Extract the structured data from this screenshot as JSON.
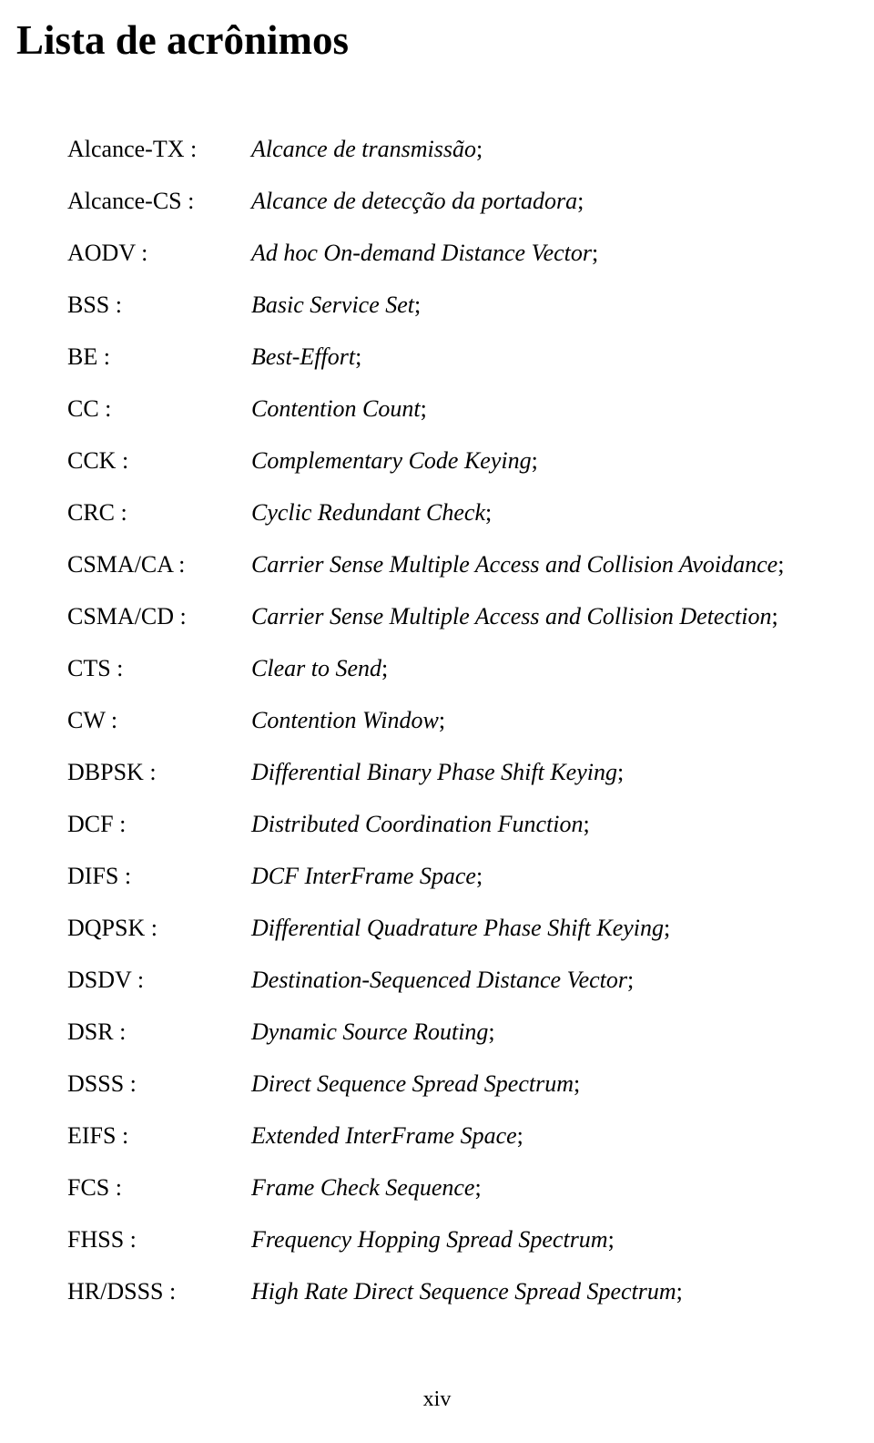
{
  "title": "Lista de acrônimos",
  "page_number": "xiv",
  "entries": [
    {
      "acronym": "Alcance-TX :",
      "definition": "Alcance de transmissão"
    },
    {
      "acronym": "Alcance-CS :",
      "definition": "Alcance de detecção da portadora"
    },
    {
      "acronym": "AODV :",
      "definition": "Ad hoc On-demand Distance Vector"
    },
    {
      "acronym": "BSS :",
      "definition": "Basic Service Set"
    },
    {
      "acronym": "BE :",
      "definition": "Best-Effort"
    },
    {
      "acronym": "CC :",
      "definition": "Contention Count"
    },
    {
      "acronym": "CCK :",
      "definition": "Complementary Code Keying"
    },
    {
      "acronym": "CRC :",
      "definition": "Cyclic Redundant Check"
    },
    {
      "acronym": "CSMA/CA :",
      "definition": "Carrier Sense Multiple Access and Collision Avoidance"
    },
    {
      "acronym": "CSMA/CD :",
      "definition": "Carrier Sense Multiple Access and Collision Detection"
    },
    {
      "acronym": "CTS :",
      "definition": "Clear to Send"
    },
    {
      "acronym": "CW :",
      "definition": "Contention Window"
    },
    {
      "acronym": "DBPSK :",
      "definition": "Differential Binary Phase Shift Keying"
    },
    {
      "acronym": "DCF :",
      "definition": "Distributed Coordination Function"
    },
    {
      "acronym": "DIFS :",
      "definition": "DCF InterFrame Space"
    },
    {
      "acronym": "DQPSK :",
      "definition": "Differential Quadrature Phase Shift Keying"
    },
    {
      "acronym": "DSDV :",
      "definition": "Destination-Sequenced Distance Vector"
    },
    {
      "acronym": "DSR :",
      "definition": "Dynamic Source Routing"
    },
    {
      "acronym": "DSSS :",
      "definition": "Direct Sequence Spread Spectrum"
    },
    {
      "acronym": "EIFS :",
      "definition": "Extended InterFrame Space"
    },
    {
      "acronym": "FCS :",
      "definition": "Frame Check Sequence"
    },
    {
      "acronym": "FHSS :",
      "definition": "Frequency Hopping Spread Spectrum"
    },
    {
      "acronym": "HR/DSSS :",
      "definition": "High Rate Direct Sequence Spread Spectrum"
    }
  ]
}
